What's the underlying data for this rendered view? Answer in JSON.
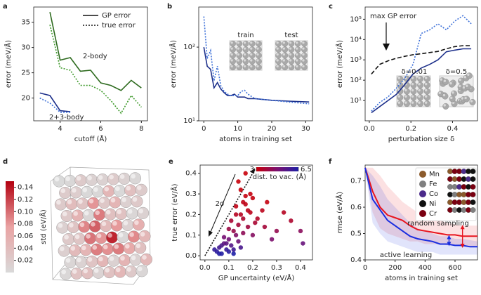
{
  "chart_data": [
    {
      "type": "line",
      "panel_label": "a",
      "xlabel": "cutoff (Å)",
      "ylabel": "error (meV/Å)",
      "xlim": [
        2.7,
        8.3
      ],
      "xticks": [
        4,
        6,
        8
      ],
      "ylim": [
        15.5,
        38
      ],
      "yticks": [
        20,
        25,
        30,
        35
      ],
      "legend": [
        {
          "name": "GP error",
          "dash": "solid",
          "color": "#111111"
        },
        {
          "name": "true error",
          "dash": "dotted",
          "color": "#111111"
        }
      ],
      "series": [
        {
          "color": "#2e6b1f",
          "dash": "solid",
          "x": [
            3.5,
            4,
            4.5,
            5,
            5.5,
            6,
            6.5,
            7,
            7.5,
            8
          ],
          "values": [
            37,
            27.5,
            28,
            25.3,
            25.5,
            23,
            22.5,
            21.5,
            23.5,
            22
          ]
        },
        {
          "color": "#3f9a2c",
          "dash": "dotted",
          "x": [
            3.5,
            4,
            4.5,
            5,
            5.5,
            6,
            6.5,
            7,
            7.5,
            8
          ],
          "values": [
            34.5,
            26,
            25.5,
            22.5,
            22.5,
            21.5,
            19.5,
            17,
            20.5,
            18.2
          ]
        },
        {
          "color": "#1c2f8a",
          "dash": "solid",
          "x": [
            3,
            3.5,
            4,
            4.5
          ],
          "values": [
            21,
            20.5,
            17.5,
            17.3
          ]
        },
        {
          "color": "#3b6fd8",
          "dash": "dotted",
          "x": [
            3,
            3.5,
            4,
            4.5
          ],
          "values": [
            20,
            19,
            17.2,
            17.2
          ]
        }
      ],
      "annotations": [
        {
          "text": "2-body"
        },
        {
          "text": "2+3-body"
        }
      ]
    },
    {
      "type": "line",
      "panel_label": "b",
      "xlabel": "atoms in training set",
      "ylabel": "error (meV/Å)",
      "ylog": true,
      "xlim": [
        -1.5,
        32
      ],
      "xticks": [
        0,
        10,
        20,
        30
      ],
      "ylim": [
        10,
        350
      ],
      "yticks": [
        {
          "value": 10,
          "label": "10¹"
        },
        {
          "value": 100,
          "label": "10²"
        }
      ],
      "x": [
        0,
        1,
        2,
        3,
        4,
        5,
        6,
        7,
        8,
        9,
        10,
        11,
        12,
        13,
        15,
        20,
        25,
        31
      ],
      "series": [
        {
          "color": "#1c2f8a",
          "dash": "solid",
          "values": [
            100,
            55,
            50,
            28,
            33,
            27,
            24,
            22,
            22,
            23,
            21,
            21,
            21,
            20,
            20,
            19,
            18.5,
            18
          ]
        },
        {
          "color": "#3b6fd8",
          "dash": "dotted",
          "values": [
            260,
            70,
            90,
            35,
            55,
            30,
            25,
            23,
            22,
            22,
            22,
            25,
            26,
            23,
            20,
            19,
            18,
            17
          ]
        }
      ],
      "annotations": [
        {
          "text": "train"
        },
        {
          "text": "test"
        }
      ]
    },
    {
      "type": "line",
      "panel_label": "c",
      "xlabel": "perturbation size δ",
      "ylabel": "error (meV/Å)",
      "ylog": true,
      "xlim": [
        -0.02,
        0.52
      ],
      "xticks": [
        {
          "value": 0,
          "label": "0.0"
        },
        0.2,
        0.4
      ],
      "ylim": [
        1,
        400000
      ],
      "yticks": [
        {
          "value": 10,
          "label": "10¹"
        },
        {
          "value": 100,
          "label": "10²"
        },
        {
          "value": 1000,
          "label": "10³"
        },
        {
          "value": 10000,
          "label": "10⁴"
        },
        {
          "value": 100000,
          "label": "10⁵"
        }
      ],
      "x": [
        0.01,
        0.05,
        0.09,
        0.13,
        0.17,
        0.21,
        0.25,
        0.29,
        0.33,
        0.37,
        0.41,
        0.45,
        0.49
      ],
      "series": [
        {
          "color": "#1c2f8a",
          "dash": "solid",
          "values": [
            2.5,
            5,
            10,
            20,
            60,
            200,
            400,
            600,
            1000,
            2500,
            3000,
            3500,
            3500
          ]
        },
        {
          "color": "#3b6fd8",
          "dash": "dotted",
          "values": [
            3,
            8,
            15,
            40,
            120,
            600,
            20000,
            30000,
            60000,
            30000,
            80000,
            150000,
            60000
          ]
        },
        {
          "color": "#111111",
          "dash": "dashed",
          "values": [
            200,
            600,
            900,
            1200,
            1500,
            1800,
            2000,
            2300,
            2600,
            3500,
            4500,
            5000,
            5000
          ]
        }
      ],
      "annotations": [
        {
          "text": "max GP error"
        },
        {
          "text": "δ=0.01"
        },
        {
          "text": "δ=0.5"
        }
      ]
    },
    {
      "type": "image",
      "panel_label": "d",
      "colorbar": {
        "label": "std (eV/Å)",
        "lim": [
          0,
          0.15
        ],
        "colors": [
          "#d9d9d9",
          "#e9a3a3",
          "#b3000f"
        ],
        "ticks": [
          0.02,
          0.04,
          0.06,
          0.08,
          {
            "value": 0.1,
            "label": "0.10"
          },
          0.12,
          0.14
        ]
      }
    },
    {
      "type": "scatter",
      "panel_label": "e",
      "xlabel": "GP uncertainty (eV/Å)",
      "ylabel": "true error (eV/Å)",
      "xlim": [
        -0.02,
        0.45
      ],
      "xticks": [
        {
          "value": 0,
          "label": "0.0"
        },
        0.1,
        0.2,
        0.3,
        0.4
      ],
      "ylim": [
        -0.02,
        0.44
      ],
      "yticks": [
        {
          "value": 0,
          "label": "0.0"
        },
        0.1,
        0.2,
        0.3,
        0.4
      ],
      "reference_slope": 2,
      "colorbar": {
        "label": "dist. to vac. (Å)",
        "lim": [
          3,
          6.5
        ],
        "ticks": [
          3,
          6.5
        ],
        "colors": [
          "#c8000a",
          "#7a1070",
          "#1d1fa6"
        ]
      },
      "series": [
        {
          "x": [
            0.05,
            0.06,
            0.07,
            0.08,
            0.09,
            0.1,
            0.11,
            0.12,
            0.13,
            0.14,
            0.15,
            0.16,
            0.17,
            0.18,
            0.19,
            0.2,
            0.08,
            0.1,
            0.12,
            0.14,
            0.16,
            0.18,
            0.09,
            0.11,
            0.13,
            0.15,
            0.17,
            0.07,
            0.1,
            0.13,
            0.16,
            0.19,
            0.22,
            0.25,
            0.28,
            0.3,
            0.24,
            0.26,
            0.33,
            0.36,
            0.4,
            0.41,
            0.12,
            0.15,
            0.2,
            0.06,
            0.04,
            0.14,
            0.17,
            0.21
          ],
          "values": [
            0.02,
            0.04,
            0.01,
            0.06,
            0.03,
            0.08,
            0.05,
            0.12,
            0.1,
            0.15,
            0.2,
            0.18,
            0.25,
            0.22,
            0.3,
            0.28,
            0.09,
            0.02,
            0.03,
            0.07,
            0.11,
            0.14,
            0.06,
            0.17,
            0.24,
            0.32,
            0.29,
            0.05,
            0.13,
            0.2,
            0.26,
            0.21,
            0.18,
            0.14,
            0.08,
            0.12,
            0.22,
            0.26,
            0.21,
            0.17,
            0.12,
            0.06,
            0.01,
            0.04,
            0.1,
            0.01,
            0.03,
            0.36,
            0.4,
            0.16
          ],
          "dist": [
            6.2,
            5.8,
            6.4,
            5.2,
            6,
            4.9,
            5.5,
            4.1,
            4.6,
            3.8,
            3.4,
            3.6,
            3.2,
            3.3,
            3.1,
            3.1,
            4.8,
            6.3,
            5.9,
            5,
            4.3,
            3.9,
            5.3,
            3.7,
            3.2,
            3,
            3.1,
            5.6,
            4,
            3.4,
            3.2,
            3.3,
            3.5,
            3.8,
            4.7,
            4.2,
            3.3,
            3.1,
            3.4,
            3.6,
            4.4,
            5.1,
            6.5,
            5.7,
            4.5,
            6.4,
            6.1,
            3,
            3,
            3.7
          ]
        }
      ],
      "annotations": [
        {
          "text": "2σ"
        }
      ]
    },
    {
      "type": "band_line",
      "panel_label": "f",
      "xlabel": "atoms in training set",
      "ylabel": "rmse (eV/Å)",
      "xlim": [
        0,
        750
      ],
      "xticks": [
        0,
        200,
        400,
        600
      ],
      "ylim": [
        0.4,
        0.76
      ],
      "yticks": [
        0.4,
        0.5,
        0.6,
        0.7
      ],
      "x": [
        0,
        50,
        100,
        150,
        200,
        250,
        300,
        350,
        400,
        450,
        500,
        550,
        600,
        650,
        700,
        750
      ],
      "series": [
        {
          "color": "#e8141e",
          "values": [
            0.75,
            0.66,
            0.6,
            0.57,
            0.56,
            0.55,
            0.53,
            0.515,
            0.51,
            0.505,
            0.5,
            0.495,
            0.495,
            0.49,
            0.49,
            0.49
          ],
          "lower": [
            0.75,
            0.58,
            0.52,
            0.5,
            0.49,
            0.48,
            0.47,
            0.47,
            0.46,
            0.46,
            0.46,
            0.455,
            0.455,
            0.45,
            0.45,
            0.45
          ],
          "upper": [
            0.75,
            0.75,
            0.72,
            0.68,
            0.65,
            0.62,
            0.6,
            0.58,
            0.57,
            0.56,
            0.55,
            0.54,
            0.535,
            0.53,
            0.53,
            0.53
          ]
        },
        {
          "color": "#1a2ee0",
          "values": [
            0.75,
            0.63,
            0.59,
            0.55,
            0.53,
            0.51,
            0.49,
            0.48,
            0.475,
            0.47,
            0.46,
            0.46,
            0.455,
            0.455,
            0.45,
            0.45
          ],
          "lower": [
            0.75,
            0.54,
            0.5,
            0.47,
            0.46,
            0.45,
            0.44,
            0.43,
            0.43,
            0.43,
            0.42,
            0.42,
            0.42,
            0.42,
            0.42,
            0.42
          ],
          "upper": [
            0.75,
            0.72,
            0.68,
            0.63,
            0.6,
            0.57,
            0.54,
            0.52,
            0.51,
            0.5,
            0.49,
            0.49,
            0.48,
            0.48,
            0.475,
            0.47
          ]
        }
      ],
      "legend": [
        {
          "name": "Mn",
          "color": "#8b5a2b"
        },
        {
          "name": "Fe",
          "color": "#7f7f7f"
        },
        {
          "name": "Co",
          "color": "#4b2a8a"
        },
        {
          "name": "Ni",
          "color": "#111111"
        },
        {
          "name": "Cr",
          "color": "#7a0010"
        }
      ],
      "annotations": [
        {
          "text": "random sampling",
          "color": "#e8141e"
        },
        {
          "text": "active learning",
          "color": "#1a2ee0"
        }
      ]
    }
  ]
}
